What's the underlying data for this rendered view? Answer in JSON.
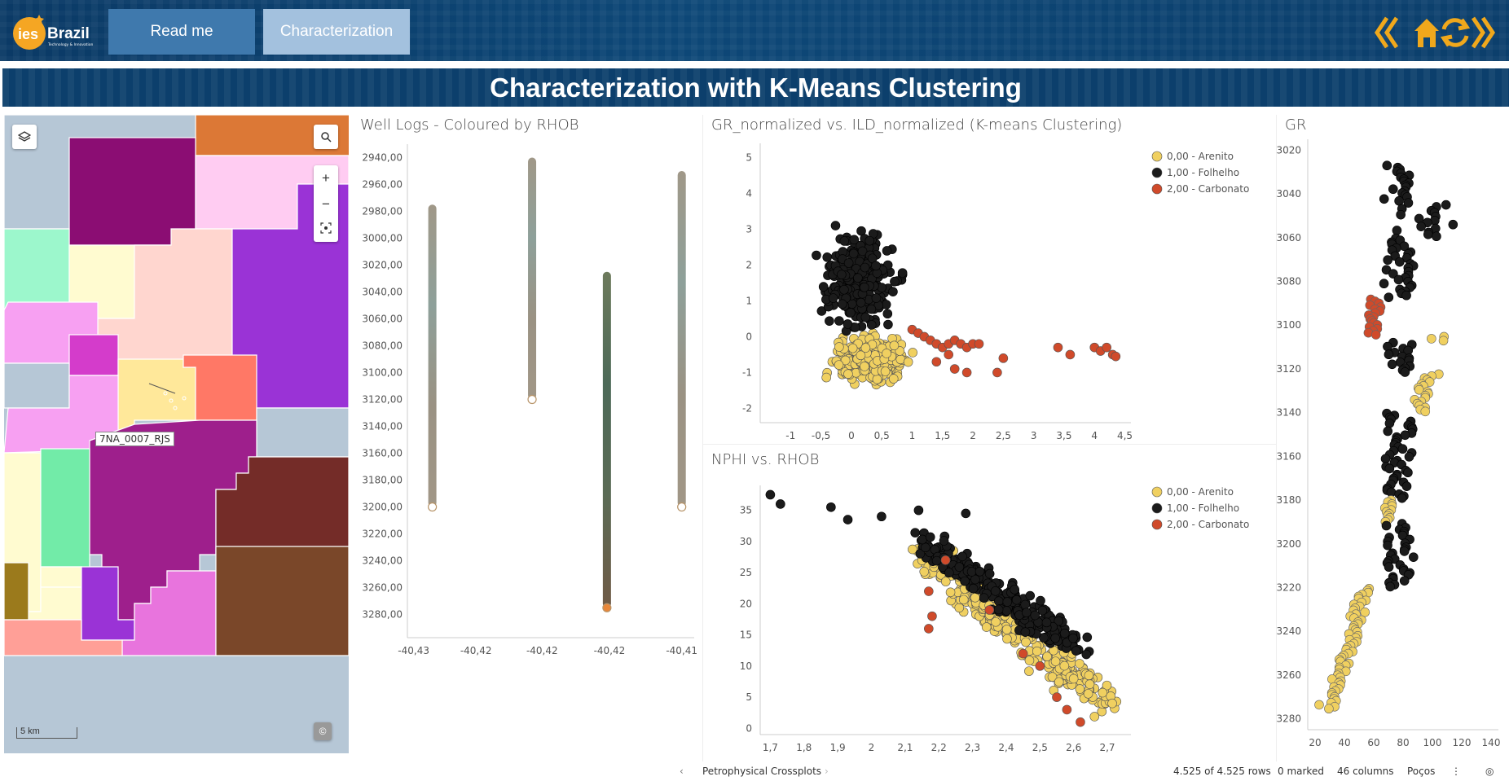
{
  "header": {
    "logo_text": "ies Brazil",
    "logo_subtext": "Technology & Innovation",
    "buttons": [
      {
        "label": "Read me"
      },
      {
        "label": "Characterization"
      }
    ],
    "nav_icons": [
      "back-icon",
      "home-icon",
      "refresh-icon",
      "forward-icon"
    ]
  },
  "page_title": "Characterization with K-Means Clustering",
  "map": {
    "well_label": "7NA_0007_RJS",
    "scale_label": "5 km",
    "controls": [
      "layers-icon",
      "search-icon",
      "zoom-in-icon",
      "zoom-out-icon",
      "recenter-icon",
      "attribution-icon"
    ]
  },
  "colors": {
    "arenito": "#f0d060",
    "folhelho": "#1b1b1b",
    "carbonato": "#d04a2a",
    "accent": "#0c3f6c"
  },
  "well_logs": {
    "title": "Well Logs - Coloured by RHOB",
    "y_ticks": [
      "2940,00",
      "2960,00",
      "2980,00",
      "3000,00",
      "3020,00",
      "3040,00",
      "3060,00",
      "3080,00",
      "3100,00",
      "3120,00",
      "3140,00",
      "3160,00",
      "3180,00",
      "3200,00",
      "3220,00",
      "3240,00",
      "3260,00",
      "3280,00"
    ],
    "x_ticks": [
      "-40,43",
      "-40,42",
      "-40,42",
      "-40,42",
      "-40,41"
    ]
  },
  "chart_data": [
    {
      "type": "line",
      "title": "Well Logs - Coloured by RHOB",
      "ylim": [
        2930,
        3290
      ],
      "y_inverted": true,
      "wells": [
        {
          "x": -40.43,
          "top": 2975,
          "bottom": 3200
        },
        {
          "x": -40.422,
          "top": 2940,
          "bottom": 3120
        },
        {
          "x": -40.416,
          "top": 3025,
          "bottom": 3275
        },
        {
          "x": -40.41,
          "top": 2950,
          "bottom": 3200
        }
      ]
    },
    {
      "type": "scatter",
      "title": "GR_normalized vs. ILD_normalized (K-means Clustering)",
      "xlim": [
        -1.5,
        4.6
      ],
      "ylim": [
        -2.4,
        5.4
      ],
      "x_ticks": [
        "-1",
        "-0,5",
        "0",
        "0,5",
        "1",
        "1,5",
        "2",
        "2,5",
        "3",
        "3,5",
        "4",
        "4,5"
      ],
      "y_ticks": [
        "-2",
        "-1",
        "0",
        "1",
        "2",
        "3",
        "4",
        "5"
      ],
      "legend": [
        "0,00 - Arenito",
        "1,00 - Folhelho",
        "2,00 - Carbonato"
      ],
      "legend_position": "top-right",
      "clusters": [
        {
          "name": "0,00 - Arenito",
          "color": "#f0d060",
          "cx": 0.3,
          "cy": -0.6,
          "sx": 0.45,
          "sy": 0.5,
          "n": 340
        },
        {
          "name": "1,00 - Folhelho",
          "color": "#1b1b1b",
          "cx": 0.1,
          "cy": 1.6,
          "sx": 0.45,
          "sy": 1.0,
          "n": 300
        },
        {
          "name": "2,00 - Carbonato",
          "color": "#d04a2a",
          "points": [
            [
              1.0,
              0.2
            ],
            [
              1.1,
              0.1
            ],
            [
              1.2,
              0.0
            ],
            [
              1.3,
              -0.1
            ],
            [
              1.4,
              -0.2
            ],
            [
              1.5,
              -0.3
            ],
            [
              1.6,
              -0.2
            ],
            [
              1.7,
              -0.1
            ],
            [
              1.8,
              -0.2
            ],
            [
              1.9,
              -0.3
            ],
            [
              2.0,
              -0.2
            ],
            [
              2.1,
              -0.2
            ],
            [
              1.9,
              -1.0
            ],
            [
              1.7,
              -0.9
            ],
            [
              1.4,
              -0.7
            ],
            [
              1.6,
              -0.5
            ],
            [
              2.4,
              -1.0
            ],
            [
              2.5,
              -0.6
            ],
            [
              3.4,
              -0.3
            ],
            [
              3.6,
              -0.5
            ],
            [
              4.0,
              -0.3
            ],
            [
              4.1,
              -0.4
            ],
            [
              4.2,
              -0.3
            ],
            [
              4.3,
              -0.5
            ],
            [
              4.35,
              -0.55
            ]
          ]
        }
      ]
    },
    {
      "type": "scatter",
      "title": "NPHI vs. RHOB",
      "xlim": [
        1.67,
        2.77
      ],
      "ylim": [
        -1,
        39
      ],
      "x_ticks": [
        "1,7",
        "1,8",
        "1,9",
        "2",
        "2,1",
        "2,2",
        "2,3",
        "2,4",
        "2,5",
        "2,6",
        "2,7"
      ],
      "y_ticks": [
        "0",
        "5",
        "10",
        "15",
        "20",
        "25",
        "30",
        "35"
      ],
      "legend": [
        "0,00 - Arenito",
        "1,00 - Folhelho",
        "2,00 - Carbonato"
      ],
      "legend_position": "top-right",
      "clusters": [
        {
          "name": "0,00 - Arenito",
          "color": "#f0d060",
          "line": true,
          "x0": 2.15,
          "x1": 2.7,
          "y0": 28,
          "y1": 4,
          "spread": 4.5,
          "n": 330
        },
        {
          "name": "1,00 - Folhelho",
          "color": "#1b1b1b",
          "line": true,
          "x0": 2.15,
          "x1": 2.62,
          "y0": 30,
          "y1": 13,
          "spread": 3.5,
          "n": 260,
          "extra": [
            [
              1.7,
              37.5
            ],
            [
              1.73,
              36
            ],
            [
              1.88,
              35.5
            ],
            [
              1.93,
              33.5
            ],
            [
              2.03,
              34
            ],
            [
              2.14,
              35
            ],
            [
              2.28,
              34.5
            ]
          ]
        },
        {
          "name": "2,00 - Carbonato",
          "color": "#d04a2a",
          "points": [
            [
              2.17,
              16
            ],
            [
              2.18,
              18
            ],
            [
              2.17,
              22
            ],
            [
              2.35,
              19
            ],
            [
              2.45,
              12
            ],
            [
              2.5,
              10
            ],
            [
              2.55,
              5
            ],
            [
              2.58,
              3
            ],
            [
              2.62,
              1
            ],
            [
              2.22,
              27
            ]
          ]
        }
      ]
    },
    {
      "type": "scatter",
      "title": "GR",
      "xlim": [
        15,
        145
      ],
      "ylim": [
        3015,
        3285
      ],
      "y_inverted": true,
      "x_ticks": [
        "20",
        "40",
        "60",
        "80",
        "100",
        "120",
        "140"
      ],
      "y_ticks": [
        "3020",
        "3040",
        "3060",
        "3080",
        "3100",
        "3120",
        "3140",
        "3160",
        "3180",
        "3200",
        "3220",
        "3240",
        "3260",
        "3280"
      ]
    }
  ],
  "status": {
    "tab_label": "Petrophysical Crossplots",
    "rows": "4.525 of 4.525 rows",
    "marked": "0 marked",
    "columns": "46 columns",
    "table": "Poços"
  }
}
